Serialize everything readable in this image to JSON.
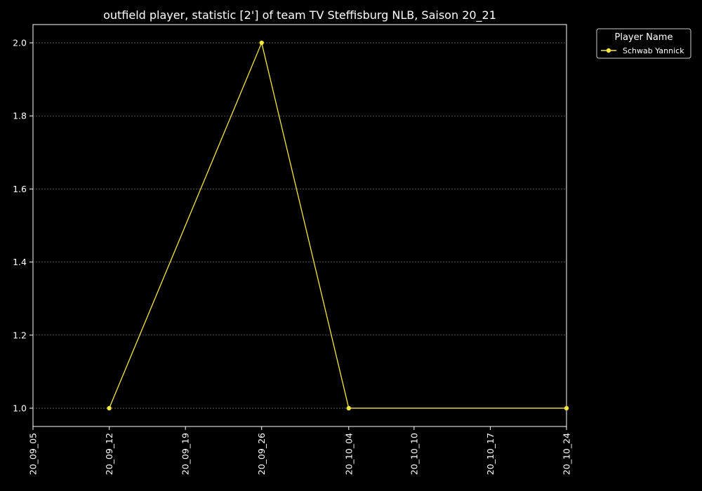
{
  "chart_data": {
    "type": "line",
    "title": "outfield player, statistic [2'] of team TV Steffisburg NLB, Saison 20_21",
    "xlabel": "",
    "ylabel": "",
    "x_ticks": [
      "20_09_05",
      "20_09_12",
      "20_09_19",
      "20_09_26",
      "20_10_04",
      "20_10_10",
      "20_10_17",
      "20_10_24"
    ],
    "y_ticks": [
      "1.0",
      "1.2",
      "1.4",
      "1.6",
      "1.8",
      "2.0"
    ],
    "ylim": [
      0.95,
      2.05
    ],
    "grid": "horizontal dashed",
    "legend": {
      "title": "Player Name",
      "placement": "outside top-right"
    },
    "series": [
      {
        "name": "Schwab Yannick",
        "color": "#f5e642",
        "points": [
          {
            "x": "20_09_12",
            "y": 1.0
          },
          {
            "x": "20_09_26",
            "y": 2.0
          },
          {
            "x": "20_10_04",
            "y": 1.0
          },
          {
            "x": "20_10_24",
            "y": 1.0
          }
        ]
      }
    ]
  }
}
